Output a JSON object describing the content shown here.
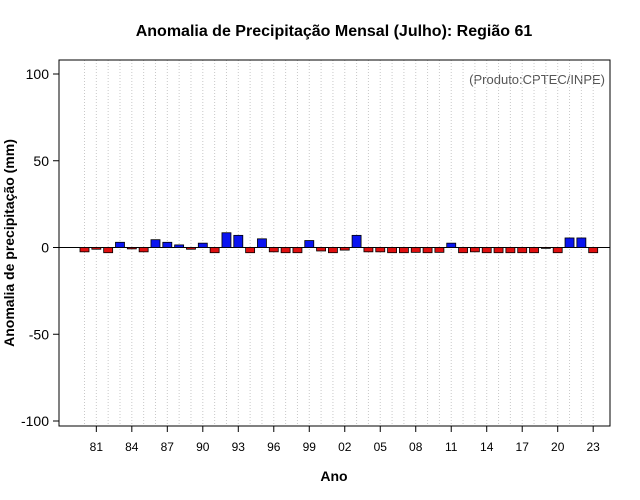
{
  "chart_data": {
    "type": "bar",
    "title": "Anomalia de Precipitação Mensal (Julho): Região 61",
    "xlabel": "Ano",
    "ylabel": "Anomalia de precipitação (mm)",
    "annotation": "(Produto:CPTEC/INPE)",
    "ylim": [
      -100,
      100
    ],
    "yticks": [
      -100,
      -50,
      0,
      50,
      100
    ],
    "xtick_labels": [
      "81",
      "84",
      "87",
      "90",
      "93",
      "96",
      "99",
      "02",
      "05",
      "08",
      "11",
      "14",
      "17",
      "20",
      "23"
    ],
    "xtick_start_index": 1,
    "xtick_step": 3,
    "grid": "vertical-dotted",
    "categories": [
      "1980",
      "1981",
      "1982",
      "1983",
      "1984",
      "1985",
      "1986",
      "1987",
      "1988",
      "1989",
      "1990",
      "1991",
      "1992",
      "1993",
      "1994",
      "1995",
      "1996",
      "1997",
      "1998",
      "1999",
      "2000",
      "2001",
      "2002",
      "2003",
      "2004",
      "2005",
      "2006",
      "2007",
      "2008",
      "2009",
      "2010",
      "2011",
      "2012",
      "2013",
      "2014",
      "2015",
      "2016",
      "2017",
      "2018",
      "2019",
      "2020",
      "2021",
      "2022",
      "2023"
    ],
    "values": [
      -2.5,
      -1.0,
      -3.0,
      3.0,
      -0.8,
      -2.5,
      4.5,
      3.0,
      1.5,
      -1.0,
      2.5,
      -3.0,
      8.5,
      7.0,
      -3.0,
      5.0,
      -2.5,
      -3.0,
      -3.0,
      4.0,
      -2.0,
      -3.0,
      -1.5,
      7.0,
      -2.5,
      -2.5,
      -3.0,
      -3.0,
      -2.8,
      -3.0,
      -2.8,
      2.5,
      -3.0,
      -2.5,
      -3.0,
      -3.0,
      -3.0,
      -3.0,
      -3.0,
      -0.5,
      -3.0,
      5.5,
      5.5,
      -3.0
    ],
    "colors": {
      "positive": "#0a14f0",
      "negative": "#e01010",
      "bar_edge": "#000000",
      "grid": "#c8c8c8"
    }
  }
}
